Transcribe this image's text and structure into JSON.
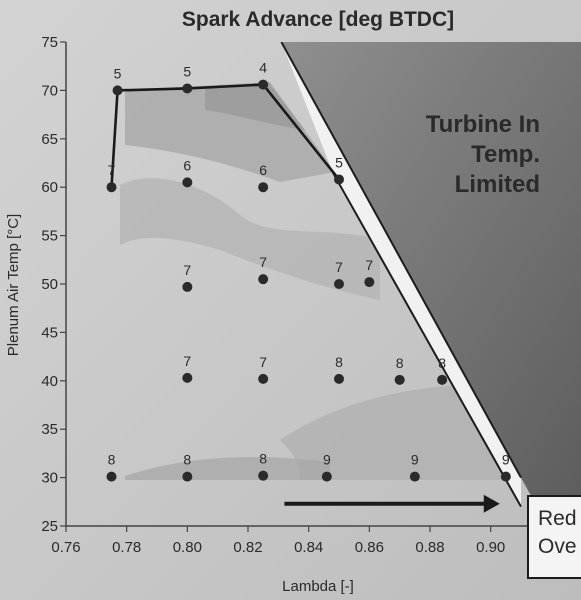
{
  "chart_data": {
    "type": "scatter",
    "title": "Spark Advance [deg BTDC]",
    "xlabel": "Lambda [-]",
    "ylabel": "Plenum Air Temp [°C]",
    "xlim": [
      0.76,
      0.91
    ],
    "ylim": [
      25,
      75
    ],
    "x_ticks": [
      "0.76",
      "0.78",
      "0.80",
      "0.82",
      "0.84",
      "0.86",
      "0.88",
      "0.90"
    ],
    "y_ticks": [
      "25",
      "30",
      "35",
      "40",
      "45",
      "50",
      "55",
      "60",
      "65",
      "70",
      "75"
    ],
    "grid": false,
    "series": [
      {
        "points": [
          {
            "x": 0.775,
            "y": 60,
            "label": "7"
          },
          {
            "x": 0.777,
            "y": 70,
            "label": "5"
          },
          {
            "x": 0.8,
            "y": 70.2,
            "label": "5"
          },
          {
            "x": 0.825,
            "y": 70.6,
            "label": "4"
          },
          {
            "x": 0.8,
            "y": 60.5,
            "label": "6"
          },
          {
            "x": 0.825,
            "y": 60,
            "label": "6"
          },
          {
            "x": 0.85,
            "y": 60.8,
            "label": "5"
          },
          {
            "x": 0.8,
            "y": 49.7,
            "label": "7"
          },
          {
            "x": 0.825,
            "y": 50.5,
            "label": "7"
          },
          {
            "x": 0.85,
            "y": 50,
            "label": "7"
          },
          {
            "x": 0.86,
            "y": 50.2,
            "label": "7"
          },
          {
            "x": 0.8,
            "y": 40.3,
            "label": "7"
          },
          {
            "x": 0.825,
            "y": 40.2,
            "label": "7"
          },
          {
            "x": 0.85,
            "y": 40.2,
            "label": "8"
          },
          {
            "x": 0.87,
            "y": 40.1,
            "label": "8"
          },
          {
            "x": 0.884,
            "y": 40.1,
            "label": "8"
          },
          {
            "x": 0.775,
            "y": 30.1,
            "label": "8"
          },
          {
            "x": 0.8,
            "y": 30.1,
            "label": "8"
          },
          {
            "x": 0.825,
            "y": 30.2,
            "label": "8"
          },
          {
            "x": 0.846,
            "y": 30.1,
            "label": "9"
          },
          {
            "x": 0.875,
            "y": 30.1,
            "label": "9"
          },
          {
            "x": 0.905,
            "y": 30.1,
            "label": "9"
          }
        ]
      }
    ],
    "boundary_line": {
      "x": [
        0.775,
        0.777,
        0.8,
        0.825,
        0.85
      ],
      "y": [
        60,
        70,
        70.2,
        70.6,
        60.8
      ]
    },
    "limit_lines": [
      {
        "x": [
          0.831,
          0.91
        ],
        "y": [
          75,
          30
        ]
      },
      {
        "x": [
          0.848,
          0.91
        ],
        "y": [
          61.5,
          27
        ]
      }
    ],
    "arrow": {
      "x": [
        0.832,
        0.903
      ],
      "y": [
        27.3,
        27.3
      ]
    },
    "annotations": [
      {
        "text_lines": [
          "Turbine In",
          "Temp.",
          "Limited"
        ],
        "x": 0.895,
        "y": 66
      },
      {
        "text_lines": [
          "Red",
          "Ove"
        ],
        "x": 0.912,
        "y": 27
      }
    ]
  }
}
